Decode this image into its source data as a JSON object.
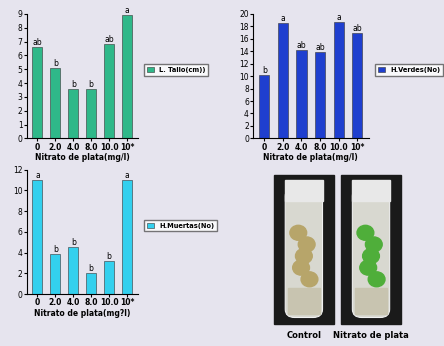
{
  "chart_data": [
    {
      "type": "bar",
      "x_label": "Nitrato de plata(mg/l)",
      "categories": [
        "0",
        "2.0",
        "4.0",
        "8.0",
        "10.0",
        "10*"
      ],
      "series": [
        {
          "name": "L. Tallo(cm))",
          "color": "#2fb889",
          "values": [
            6.6,
            5.1,
            3.6,
            3.6,
            6.8,
            8.9
          ]
        }
      ],
      "annotations": [
        "ab",
        "b",
        "b",
        "b",
        "ab",
        "a"
      ],
      "ylim": [
        0,
        9
      ],
      "yticks": [
        0,
        1,
        2,
        3,
        4,
        5,
        6,
        7,
        8,
        9
      ],
      "grid": false,
      "legend": "right"
    },
    {
      "type": "bar",
      "x_label": "Nitrato de plata(mg/l)",
      "categories": [
        "0",
        "2.0",
        "4.0",
        "8.0",
        "10.0",
        "10*"
      ],
      "series": [
        {
          "name": "H.Verdes(No)",
          "color": "#1f3fcf",
          "values": [
            10.2,
            18.5,
            14.2,
            13.8,
            18.7,
            17.0
          ]
        }
      ],
      "annotations": [
        "b",
        "a",
        "ab",
        "ab",
        "a",
        "ab"
      ],
      "ylim": [
        0,
        20
      ],
      "yticks": [
        0,
        2,
        4,
        6,
        8,
        10,
        12,
        14,
        16,
        18,
        20
      ],
      "grid": false,
      "legend": "right"
    },
    {
      "type": "bar",
      "x_label": "Nitrato de plata(mg?l)",
      "categories": [
        "0",
        "2.0",
        "4.0",
        "8.0",
        "10.0",
        "10*"
      ],
      "series": [
        {
          "name": "H.Muertas(No)",
          "color": "#33d0ee",
          "values": [
            11.0,
            3.9,
            4.5,
            2.0,
            3.2,
            11.0
          ]
        }
      ],
      "annotations": [
        "a",
        "b",
        "b",
        "b",
        "b",
        "a"
      ],
      "ylim": [
        0,
        12
      ],
      "yticks": [
        0,
        2,
        4,
        6,
        8,
        10,
        12
      ],
      "grid": false,
      "legend": "right"
    }
  ],
  "photo": {
    "captions": [
      "Control",
      "Nitrato de plata"
    ]
  }
}
